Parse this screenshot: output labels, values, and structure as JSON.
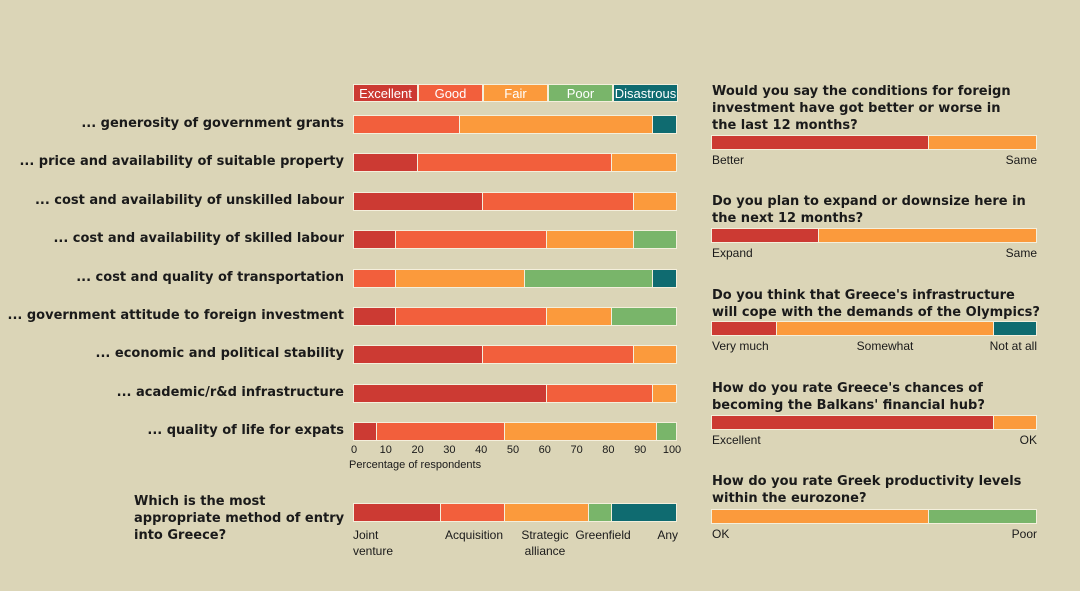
{
  "colors": {
    "Excellent": "#cc3a33",
    "Good": "#f25f3c",
    "Fair": "#fb9a3c",
    "Poor": "#79b56a",
    "Disastrous": "#0f6b70",
    "background": "#dbd5b7"
  },
  "chart_data": [
    {
      "type": "bar",
      "stacked": true,
      "orientation": "horizontal",
      "title": "",
      "xlabel": "Percentage of respondents",
      "xlim": [
        0,
        100
      ],
      "ticks": [
        "0",
        "10",
        "20",
        "30",
        "40",
        "50",
        "60",
        "70",
        "80",
        "90",
        "100"
      ],
      "legend": [
        "Excellent",
        "Good",
        "Fair",
        "Poor",
        "Disastrous"
      ],
      "legend_position": "top",
      "categories": [
        "... generosity of government grants",
        "... price and availability of suitable property",
        "... cost and availability of unskilled labour",
        "... cost and availability of skilled labour",
        "... cost and quality of transportation",
        "... government attitude to foreign investment",
        "... economic and political stability",
        "... academic/r&d infrastructure",
        "... quality of life for expats"
      ],
      "series": [
        {
          "name": "Excellent",
          "values": [
            0,
            20,
            40,
            13,
            0,
            13,
            40,
            60,
            7
          ]
        },
        {
          "name": "Good",
          "values": [
            33,
            60,
            47,
            47,
            13,
            47,
            47,
            33,
            40
          ]
        },
        {
          "name": "Fair",
          "values": [
            60,
            20,
            13,
            27,
            40,
            20,
            13,
            7,
            47
          ]
        },
        {
          "name": "Poor",
          "values": [
            0,
            0,
            0,
            13,
            40,
            20,
            0,
            0,
            6
          ]
        },
        {
          "name": "Disastrous",
          "values": [
            7,
            0,
            0,
            0,
            7,
            0,
            0,
            0,
            0
          ]
        }
      ]
    },
    {
      "type": "bar",
      "stacked": true,
      "title": "Which is the most appropriate method of entry into Greece?",
      "segments": [
        {
          "label": "Joint venture",
          "value": 27,
          "color": "Excellent"
        },
        {
          "label": "Acquisition",
          "value": 20,
          "color": "Good"
        },
        {
          "label": "Strategic alliance",
          "value": 26,
          "color": "Fair"
        },
        {
          "label": "Greenfield",
          "value": 7,
          "color": "Poor"
        },
        {
          "label": "Any",
          "value": 20,
          "color": "Disastrous"
        }
      ]
    },
    {
      "type": "bar",
      "stacked": true,
      "title": "Would you say the conditions for foreign investment have got better or worse in the last 12 months?",
      "segments": [
        {
          "label": "Better",
          "value": 67,
          "color": "Excellent"
        },
        {
          "label": "Same",
          "value": 33,
          "color": "Fair"
        }
      ]
    },
    {
      "type": "bar",
      "stacked": true,
      "title": "Do you plan to expand or downsize here in the next 12 months?",
      "segments": [
        {
          "label": "Expand",
          "value": 33,
          "color": "Excellent"
        },
        {
          "label": "Same",
          "value": 67,
          "color": "Fair"
        }
      ]
    },
    {
      "type": "bar",
      "stacked": true,
      "title": "Do you think that Greece's infrastructure will cope with the demands of the Olympics?",
      "segments": [
        {
          "label": "Very much",
          "value": 20,
          "color": "Excellent"
        },
        {
          "label": "Somewhat",
          "value": 67,
          "color": "Fair"
        },
        {
          "label": "Not at all",
          "value": 13,
          "color": "Disastrous"
        }
      ]
    },
    {
      "type": "bar",
      "stacked": true,
      "title": "How do you rate Greece's chances of becoming the Balkans' financial hub?",
      "segments": [
        {
          "label": "Excellent",
          "value": 87,
          "color": "Excellent"
        },
        {
          "label": "OK",
          "value": 13,
          "color": "Fair"
        }
      ]
    },
    {
      "type": "bar",
      "stacked": true,
      "title": "How do you rate Greek productivity levels within the eurozone?",
      "segments": [
        {
          "label": "OK",
          "value": 67,
          "color": "Fair"
        },
        {
          "label": "Poor",
          "value": 33,
          "color": "Poor"
        }
      ]
    }
  ],
  "entry_question": "Which is the most appropriate method of entry into Greece?",
  "right_questions": [
    "Would you say the conditions for foreign investment have got better or worse in the last 12 months?",
    "Do you plan to expand or downsize here in the next 12 months?",
    "Do you think that Greece's infrastructure will cope with the demands of the Olympics?",
    "How do you rate Greece's chances of becoming the Balkans' financial hub?",
    "How do you rate Greek productivity levels within the eurozone?"
  ]
}
